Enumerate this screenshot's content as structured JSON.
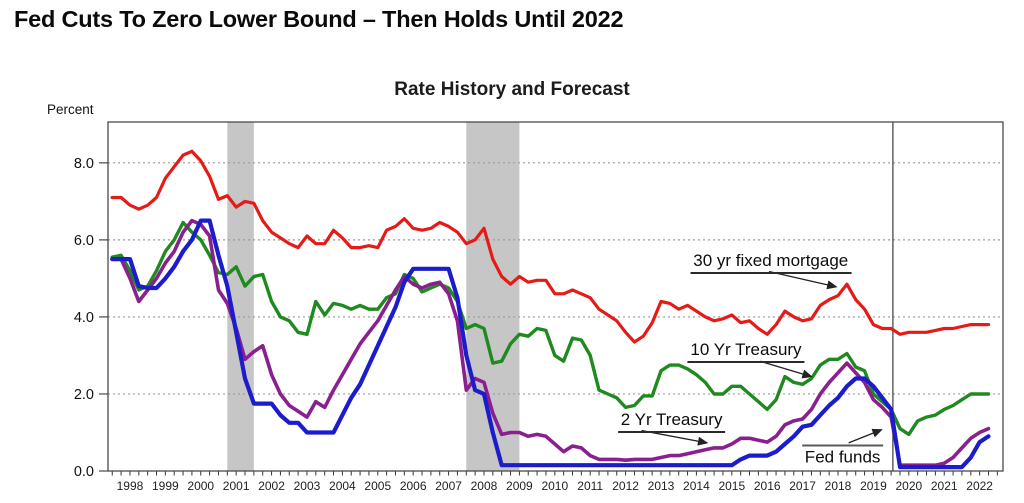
{
  "page": {
    "title": "Fed Cuts To Zero Lower Bound – Then Holds Until 2022"
  },
  "chart_data": {
    "type": "line",
    "title": "Rate History and Forecast",
    "ylabel": "Percent",
    "xlim": [
      1997.88,
      2023.16
    ],
    "ylim": [
      0,
      9.06
    ],
    "yticks": [
      0,
      2,
      4,
      6,
      8
    ],
    "ytick_labels": [
      "0.0",
      "2.0",
      "4.0",
      "6.0",
      "8.0"
    ],
    "year_labels": [
      1998,
      1999,
      2000,
      2001,
      2002,
      2003,
      2004,
      2005,
      2006,
      2007,
      2008,
      2009,
      2010,
      2011,
      2012,
      2013,
      2014,
      2015,
      2016,
      2017,
      2018,
      2019,
      2020,
      2021,
      2022
    ],
    "grid": "dotted-horizontal",
    "legend_position": "inline-annotations",
    "x_start": 1998.0,
    "x_step": 0.25,
    "recession_bands": [
      [
        2001.25,
        2002.0
      ],
      [
        2008.0,
        2009.5
      ]
    ],
    "forecast_divider": 2020.05,
    "colors": {
      "recession_band": "#c6c6c6",
      "gridline": "#9a9a9a",
      "plot_border": "#4a4a4a",
      "divider": "#4a4a4a",
      "axis_text": "#111111",
      "arrow": "#222222"
    },
    "series": [
      {
        "name": "30 yr fixed mortgage",
        "color": "#e41b17",
        "width": 3.2,
        "values": [
          7.1,
          7.1,
          6.9,
          6.8,
          6.9,
          7.1,
          7.6,
          7.9,
          8.2,
          8.3,
          8.05,
          7.65,
          7.05,
          7.15,
          6.85,
          7.0,
          6.95,
          6.5,
          6.2,
          6.05,
          5.9,
          5.8,
          6.1,
          5.9,
          5.9,
          6.25,
          6.05,
          5.8,
          5.8,
          5.85,
          5.8,
          6.25,
          6.35,
          6.55,
          6.3,
          6.25,
          6.3,
          6.45,
          6.35,
          6.2,
          5.9,
          6.0,
          6.3,
          5.5,
          5.05,
          4.85,
          5.05,
          4.9,
          4.95,
          4.95,
          4.6,
          4.6,
          4.7,
          4.6,
          4.5,
          4.2,
          4.05,
          3.9,
          3.6,
          3.35,
          3.5,
          3.85,
          4.4,
          4.35,
          4.2,
          4.3,
          4.15,
          4.0,
          3.9,
          3.95,
          4.05,
          3.85,
          3.9,
          3.7,
          3.55,
          3.8,
          4.15,
          4.0,
          3.9,
          3.95,
          4.3,
          4.45,
          4.55,
          4.85,
          4.45,
          4.2,
          3.8,
          3.7,
          3.7,
          3.55,
          3.6,
          3.6,
          3.6,
          3.65,
          3.7,
          3.7,
          3.75,
          3.8,
          3.8,
          3.8
        ]
      },
      {
        "name": "10 Yr Treasury",
        "color": "#1f8a1f",
        "width": 3.4,
        "values": [
          5.55,
          5.6,
          5.2,
          4.7,
          4.8,
          5.2,
          5.7,
          6.0,
          6.45,
          6.2,
          6.0,
          5.6,
          5.15,
          5.1,
          5.3,
          4.8,
          5.05,
          5.1,
          4.4,
          4.0,
          3.9,
          3.6,
          3.55,
          4.4,
          4.05,
          4.35,
          4.3,
          4.2,
          4.3,
          4.2,
          4.2,
          4.5,
          4.6,
          5.1,
          5.0,
          4.65,
          4.75,
          4.85,
          4.75,
          4.4,
          3.7,
          3.8,
          3.7,
          2.8,
          2.85,
          3.3,
          3.55,
          3.5,
          3.7,
          3.65,
          3.0,
          2.85,
          3.45,
          3.4,
          3.0,
          2.1,
          2.0,
          1.9,
          1.65,
          1.7,
          1.95,
          1.95,
          2.6,
          2.75,
          2.75,
          2.65,
          2.5,
          2.3,
          2.0,
          2.0,
          2.2,
          2.2,
          2.0,
          1.8,
          1.6,
          1.85,
          2.45,
          2.3,
          2.25,
          2.4,
          2.75,
          2.9,
          2.9,
          3.05,
          2.7,
          2.6,
          2.0,
          1.8,
          1.6,
          1.1,
          0.95,
          1.3,
          1.4,
          1.45,
          1.6,
          1.7,
          1.85,
          2.0,
          2.0,
          2.0
        ]
      },
      {
        "name": "2 Yr Treasury",
        "color": "#8a1f8f",
        "width": 3.6,
        "values": [
          5.5,
          5.5,
          5.0,
          4.4,
          4.7,
          5.0,
          5.4,
          5.7,
          6.2,
          6.5,
          6.4,
          6.1,
          4.7,
          4.35,
          3.7,
          2.9,
          3.1,
          3.25,
          2.5,
          2.0,
          1.7,
          1.55,
          1.4,
          1.8,
          1.65,
          2.1,
          2.5,
          2.9,
          3.3,
          3.6,
          3.9,
          4.3,
          4.7,
          5.05,
          4.85,
          4.75,
          4.85,
          4.9,
          4.6,
          3.9,
          2.1,
          2.4,
          2.3,
          1.5,
          0.95,
          1.0,
          1.0,
          0.9,
          0.95,
          0.9,
          0.7,
          0.5,
          0.65,
          0.6,
          0.4,
          0.3,
          0.3,
          0.3,
          0.28,
          0.3,
          0.3,
          0.3,
          0.35,
          0.4,
          0.4,
          0.45,
          0.5,
          0.55,
          0.6,
          0.6,
          0.7,
          0.85,
          0.85,
          0.8,
          0.75,
          0.9,
          1.2,
          1.3,
          1.35,
          1.6,
          2.0,
          2.3,
          2.55,
          2.8,
          2.55,
          2.3,
          1.85,
          1.65,
          1.4,
          0.15,
          0.15,
          0.15,
          0.15,
          0.15,
          0.2,
          0.35,
          0.6,
          0.85,
          1.0,
          1.1
        ]
      },
      {
        "name": "Fed funds",
        "color": "#1c1ccd",
        "width": 4.2,
        "values": [
          5.5,
          5.5,
          5.5,
          4.8,
          4.75,
          4.75,
          5.0,
          5.3,
          5.7,
          6.0,
          6.5,
          6.5,
          5.6,
          4.8,
          3.6,
          2.4,
          1.75,
          1.75,
          1.75,
          1.45,
          1.25,
          1.25,
          1.0,
          1.0,
          1.0,
          1.0,
          1.45,
          1.9,
          2.25,
          2.75,
          3.25,
          3.75,
          4.25,
          4.9,
          5.25,
          5.25,
          5.25,
          5.25,
          5.25,
          4.5,
          3.0,
          2.1,
          2.0,
          1.0,
          0.15,
          0.15,
          0.15,
          0.15,
          0.15,
          0.15,
          0.15,
          0.15,
          0.15,
          0.15,
          0.15,
          0.15,
          0.15,
          0.15,
          0.15,
          0.15,
          0.15,
          0.15,
          0.15,
          0.15,
          0.15,
          0.15,
          0.15,
          0.15,
          0.15,
          0.15,
          0.15,
          0.3,
          0.4,
          0.4,
          0.4,
          0.5,
          0.7,
          0.9,
          1.15,
          1.2,
          1.45,
          1.7,
          1.9,
          2.2,
          2.4,
          2.4,
          2.2,
          1.9,
          1.6,
          0.1,
          0.1,
          0.1,
          0.1,
          0.1,
          0.1,
          0.1,
          0.1,
          0.35,
          0.75,
          0.9
        ]
      }
    ],
    "annotations": [
      {
        "label": "30 yr fixed mortgage",
        "x": 2016.6,
        "y": 5.45,
        "underline": "bottom",
        "arrow": {
          "from": [
            2016.55,
            5.18
          ],
          "to": [
            2018.45,
            4.78
          ]
        }
      },
      {
        "label": "10 Yr Treasury",
        "x": 2015.9,
        "y": 3.14,
        "underline": "bottom",
        "arrow": {
          "from": [
            2016.3,
            2.85
          ],
          "to": [
            2017.75,
            2.45
          ]
        }
      },
      {
        "label": "2 Yr Treasury",
        "x": 2013.8,
        "y": 1.32,
        "underline": "bottom",
        "arrow": {
          "from": [
            2012.95,
            1.05
          ],
          "to": [
            2014.8,
            0.73
          ]
        }
      },
      {
        "label": "Fed funds",
        "x": 2018.63,
        "y": 0.39,
        "underline": "top",
        "arrow": {
          "from": [
            2018.8,
            0.73
          ],
          "to": [
            2019.73,
            1.07
          ]
        }
      }
    ]
  }
}
